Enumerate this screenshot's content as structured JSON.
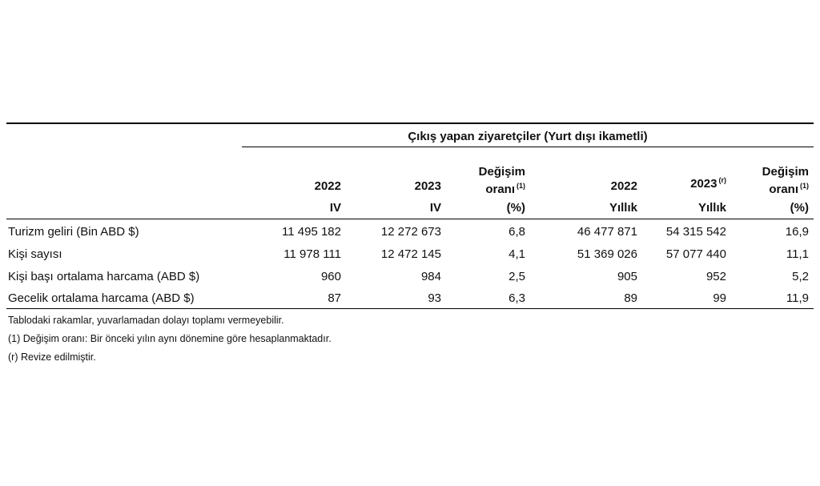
{
  "table": {
    "group_header": "Çıkış yapan ziyaretçiler (Yurt dışı ikametli)",
    "columns": [
      {
        "line1": "",
        "line2": "2022",
        "line3": "IV",
        "sup": ""
      },
      {
        "line1": "",
        "line2": "2023",
        "line3": "IV",
        "sup": ""
      },
      {
        "line1": "Değişim",
        "line2": "oranı",
        "line3": "(%)",
        "sup": "(1)"
      },
      {
        "line1": "",
        "line2": "2022",
        "line3": "Yıllık",
        "sup": ""
      },
      {
        "line1": "",
        "line2": "2023",
        "line3": "Yıllık",
        "sup": "(r)"
      },
      {
        "line1": "Değişim",
        "line2": "oranı",
        "line3": "(%)",
        "sup": "(1)"
      }
    ],
    "rows": [
      {
        "label": "Turizm geliri (Bin ABD $)",
        "values": [
          "11 495 182",
          "12 272 673",
          "6,8",
          "46 477 871",
          "54 315 542",
          "16,9"
        ]
      },
      {
        "label": "Kişi sayısı",
        "values": [
          "11 978 111",
          "12 472 145",
          "4,1",
          "51 369 026",
          "57 077 440",
          "11,1"
        ]
      },
      {
        "label": "Kişi başı ortalama harcama (ABD $)",
        "values": [
          "960",
          "984",
          "2,5",
          "905",
          "952",
          "5,2"
        ]
      },
      {
        "label": "Gecelik ortalama harcama (ABD $)",
        "values": [
          "87",
          "93",
          "6,3",
          "89",
          "99",
          "11,9"
        ]
      }
    ]
  },
  "notes": [
    "Tablodaki rakamlar, yuvarlamadan dolayı toplamı vermeyebilir.",
    "(1) Değişim oranı: Bir önceki yılın aynı dönemine göre hesaplanmaktadır.",
    "(r) Revize edilmiştir."
  ]
}
